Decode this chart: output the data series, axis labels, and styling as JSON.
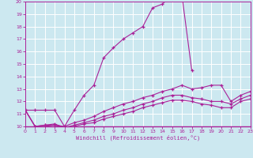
{
  "xlabel": "Windchill (Refroidissement éolien,°C)",
  "xlim": [
    0,
    23
  ],
  "ylim": [
    10,
    20
  ],
  "yticks": [
    10,
    11,
    12,
    13,
    14,
    15,
    16,
    17,
    18,
    19,
    20
  ],
  "xticks": [
    0,
    1,
    2,
    3,
    4,
    5,
    6,
    7,
    8,
    9,
    10,
    11,
    12,
    13,
    14,
    15,
    16,
    17,
    18,
    19,
    20,
    21,
    22,
    23
  ],
  "bg_color": "#cce8f0",
  "grid_color": "#ffffff",
  "line_color": "#aa2299",
  "lines": [
    {
      "x": [
        0,
        1,
        2,
        3,
        4,
        5,
        6,
        7,
        8,
        9,
        10,
        11,
        12,
        13,
        14,
        15,
        16,
        17
      ],
      "y": [
        11.3,
        11.3,
        11.3,
        11.3,
        10.0,
        11.3,
        12.5,
        13.3,
        15.5,
        16.3,
        17.0,
        17.5,
        18.0,
        19.5,
        19.8,
        20.5,
        20.5,
        14.5
      ]
    },
    {
      "x": [
        0,
        1,
        2,
        3,
        4,
        5,
        6,
        7,
        8,
        9,
        10,
        11,
        12,
        13,
        14,
        15,
        16,
        17,
        18,
        19,
        20,
        21,
        22,
        23
      ],
      "y": [
        11.3,
        10.0,
        10.1,
        10.1,
        10.0,
        10.3,
        10.5,
        10.8,
        11.2,
        11.5,
        11.8,
        12.0,
        12.3,
        12.5,
        12.8,
        13.0,
        13.3,
        13.0,
        13.1,
        13.3,
        13.3,
        12.0,
        12.5,
        12.8
      ]
    },
    {
      "x": [
        0,
        1,
        2,
        3,
        4,
        5,
        6,
        7,
        8,
        9,
        10,
        11,
        12,
        13,
        14,
        15,
        16,
        17,
        18,
        19,
        20,
        21,
        22,
        23
      ],
      "y": [
        11.3,
        10.0,
        10.1,
        10.2,
        9.9,
        10.1,
        10.3,
        10.5,
        10.8,
        11.0,
        11.3,
        11.5,
        11.8,
        12.0,
        12.3,
        12.5,
        12.5,
        12.3,
        12.2,
        12.0,
        12.0,
        11.8,
        12.2,
        12.5
      ]
    },
    {
      "x": [
        0,
        1,
        2,
        3,
        4,
        5,
        6,
        7,
        8,
        9,
        10,
        11,
        12,
        13,
        14,
        15,
        16,
        17,
        18,
        19,
        20,
        21,
        22,
        23
      ],
      "y": [
        11.3,
        10.0,
        10.0,
        10.1,
        9.9,
        10.0,
        10.2,
        10.3,
        10.6,
        10.8,
        11.0,
        11.2,
        11.5,
        11.7,
        11.9,
        12.1,
        12.1,
        12.0,
        11.8,
        11.7,
        11.5,
        11.5,
        12.0,
        12.2
      ]
    }
  ]
}
